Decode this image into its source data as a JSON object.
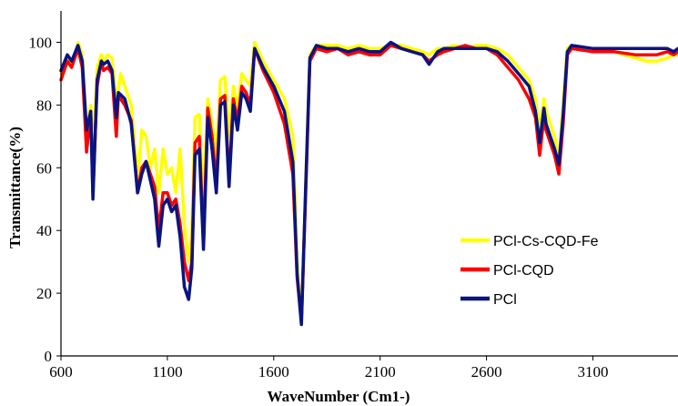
{
  "chart_data": {
    "type": "line",
    "title": "",
    "xlabel": "WaveNumber (Cm1-)",
    "ylabel": "Transmittance(%)",
    "xlim": [
      600,
      3500
    ],
    "ylim": [
      0,
      110
    ],
    "xticks": [
      "600",
      "1100",
      "1600",
      "2100",
      "2600",
      "3100"
    ],
    "yticks": [
      "0",
      "20",
      "40",
      "60",
      "80",
      "100"
    ],
    "grid": false,
    "legend_position": "lower-right",
    "series": [
      {
        "name": "PCl-Cs-CQD-Fe",
        "color": "#FFFF00",
        "points": [
          [
            600,
            90
          ],
          [
            630,
            95
          ],
          [
            650,
            92
          ],
          [
            680,
            100
          ],
          [
            700,
            96
          ],
          [
            720,
            72
          ],
          [
            740,
            80
          ],
          [
            750,
            60
          ],
          [
            770,
            92
          ],
          [
            790,
            96
          ],
          [
            800,
            94
          ],
          [
            820,
            96
          ],
          [
            840,
            95
          ],
          [
            860,
            80
          ],
          [
            880,
            90
          ],
          [
            900,
            86
          ],
          [
            930,
            80
          ],
          [
            960,
            56
          ],
          [
            980,
            72
          ],
          [
            1000,
            70
          ],
          [
            1020,
            60
          ],
          [
            1040,
            66
          ],
          [
            1060,
            52
          ],
          [
            1080,
            66
          ],
          [
            1100,
            58
          ],
          [
            1120,
            60
          ],
          [
            1140,
            52
          ],
          [
            1160,
            66
          ],
          [
            1180,
            42
          ],
          [
            1200,
            30
          ],
          [
            1215,
            40
          ],
          [
            1230,
            76
          ],
          [
            1250,
            77
          ],
          [
            1270,
            48
          ],
          [
            1290,
            82
          ],
          [
            1310,
            74
          ],
          [
            1330,
            64
          ],
          [
            1350,
            88
          ],
          [
            1370,
            89
          ],
          [
            1390,
            70
          ],
          [
            1410,
            86
          ],
          [
            1430,
            79
          ],
          [
            1450,
            90
          ],
          [
            1470,
            88
          ],
          [
            1490,
            86
          ],
          [
            1510,
            100
          ],
          [
            1550,
            94
          ],
          [
            1600,
            88
          ],
          [
            1650,
            82
          ],
          [
            1690,
            70
          ],
          [
            1710,
            30
          ],
          [
            1730,
            10
          ],
          [
            1750,
            55
          ],
          [
            1770,
            96
          ],
          [
            1800,
            99
          ],
          [
            1850,
            99
          ],
          [
            1900,
            99
          ],
          [
            1950,
            98
          ],
          [
            2000,
            99
          ],
          [
            2050,
            98
          ],
          [
            2100,
            98
          ],
          [
            2150,
            99
          ],
          [
            2200,
            99
          ],
          [
            2250,
            98
          ],
          [
            2300,
            97
          ],
          [
            2330,
            96
          ],
          [
            2370,
            98
          ],
          [
            2400,
            98
          ],
          [
            2450,
            99
          ],
          [
            2500,
            98
          ],
          [
            2550,
            99
          ],
          [
            2600,
            99
          ],
          [
            2650,
            98
          ],
          [
            2700,
            96
          ],
          [
            2750,
            92
          ],
          [
            2800,
            88
          ],
          [
            2830,
            82
          ],
          [
            2850,
            72
          ],
          [
            2870,
            82
          ],
          [
            2880,
            78
          ],
          [
            2900,
            74
          ],
          [
            2920,
            70
          ],
          [
            2940,
            62
          ],
          [
            2960,
            80
          ],
          [
            2980,
            98
          ],
          [
            3000,
            99
          ],
          [
            3100,
            98
          ],
          [
            3200,
            97
          ],
          [
            3300,
            95
          ],
          [
            3350,
            94
          ],
          [
            3400,
            94
          ],
          [
            3450,
            95
          ],
          [
            3480,
            96
          ],
          [
            3500,
            96
          ]
        ]
      },
      {
        "name": "PCl-CQD",
        "color": "#FF0000",
        "points": [
          [
            600,
            88
          ],
          [
            630,
            94
          ],
          [
            650,
            92
          ],
          [
            680,
            98
          ],
          [
            700,
            92
          ],
          [
            720,
            65
          ],
          [
            740,
            78
          ],
          [
            750,
            52
          ],
          [
            770,
            86
          ],
          [
            790,
            94
          ],
          [
            800,
            91
          ],
          [
            820,
            92
          ],
          [
            840,
            90
          ],
          [
            860,
            70
          ],
          [
            870,
            83
          ],
          [
            900,
            80
          ],
          [
            930,
            75
          ],
          [
            960,
            52
          ],
          [
            980,
            60
          ],
          [
            1000,
            62
          ],
          [
            1020,
            58
          ],
          [
            1040,
            54
          ],
          [
            1060,
            40
          ],
          [
            1080,
            52
          ],
          [
            1100,
            52
          ],
          [
            1120,
            48
          ],
          [
            1140,
            50
          ],
          [
            1160,
            42
          ],
          [
            1180,
            30
          ],
          [
            1200,
            24
          ],
          [
            1215,
            30
          ],
          [
            1230,
            68
          ],
          [
            1250,
            70
          ],
          [
            1270,
            36
          ],
          [
            1290,
            79
          ],
          [
            1310,
            70
          ],
          [
            1330,
            55
          ],
          [
            1350,
            82
          ],
          [
            1370,
            83
          ],
          [
            1390,
            56
          ],
          [
            1410,
            82
          ],
          [
            1430,
            75
          ],
          [
            1450,
            86
          ],
          [
            1470,
            84
          ],
          [
            1490,
            80
          ],
          [
            1510,
            98
          ],
          [
            1550,
            91
          ],
          [
            1600,
            84
          ],
          [
            1650,
            74
          ],
          [
            1690,
            58
          ],
          [
            1710,
            25
          ],
          [
            1730,
            11
          ],
          [
            1750,
            52
          ],
          [
            1770,
            94
          ],
          [
            1800,
            98
          ],
          [
            1850,
            97
          ],
          [
            1900,
            98
          ],
          [
            1950,
            96
          ],
          [
            2000,
            97
          ],
          [
            2050,
            96
          ],
          [
            2100,
            96
          ],
          [
            2150,
            99
          ],
          [
            2200,
            98
          ],
          [
            2250,
            97
          ],
          [
            2300,
            96
          ],
          [
            2330,
            94
          ],
          [
            2370,
            96
          ],
          [
            2400,
            97
          ],
          [
            2450,
            98
          ],
          [
            2500,
            99
          ],
          [
            2550,
            98
          ],
          [
            2600,
            98
          ],
          [
            2650,
            96
          ],
          [
            2700,
            92
          ],
          [
            2750,
            88
          ],
          [
            2800,
            82
          ],
          [
            2830,
            76
          ],
          [
            2850,
            64
          ],
          [
            2870,
            76
          ],
          [
            2880,
            72
          ],
          [
            2900,
            68
          ],
          [
            2920,
            64
          ],
          [
            2940,
            58
          ],
          [
            2960,
            74
          ],
          [
            2980,
            96
          ],
          [
            3000,
            98
          ],
          [
            3100,
            97
          ],
          [
            3200,
            97
          ],
          [
            3300,
            96
          ],
          [
            3350,
            96
          ],
          [
            3400,
            96
          ],
          [
            3450,
            97
          ],
          [
            3480,
            96
          ],
          [
            3500,
            97
          ]
        ]
      },
      {
        "name": "PCl",
        "color": "#0A1480",
        "points": [
          [
            600,
            91
          ],
          [
            630,
            96
          ],
          [
            650,
            94
          ],
          [
            680,
            99
          ],
          [
            700,
            94
          ],
          [
            720,
            72
          ],
          [
            740,
            78
          ],
          [
            750,
            50
          ],
          [
            770,
            88
          ],
          [
            790,
            94
          ],
          [
            800,
            93
          ],
          [
            820,
            94
          ],
          [
            840,
            91
          ],
          [
            860,
            76
          ],
          [
            870,
            84
          ],
          [
            900,
            82
          ],
          [
            930,
            74
          ],
          [
            960,
            52
          ],
          [
            980,
            58
          ],
          [
            1000,
            62
          ],
          [
            1020,
            56
          ],
          [
            1040,
            50
          ],
          [
            1060,
            35
          ],
          [
            1080,
            48
          ],
          [
            1100,
            50
          ],
          [
            1120,
            46
          ],
          [
            1140,
            48
          ],
          [
            1160,
            38
          ],
          [
            1180,
            22
          ],
          [
            1200,
            18
          ],
          [
            1215,
            28
          ],
          [
            1230,
            64
          ],
          [
            1250,
            66
          ],
          [
            1270,
            34
          ],
          [
            1290,
            76
          ],
          [
            1310,
            66
          ],
          [
            1330,
            52
          ],
          [
            1350,
            80
          ],
          [
            1370,
            81
          ],
          [
            1390,
            54
          ],
          [
            1410,
            80
          ],
          [
            1430,
            72
          ],
          [
            1450,
            84
          ],
          [
            1470,
            82
          ],
          [
            1490,
            78
          ],
          [
            1510,
            98
          ],
          [
            1550,
            92
          ],
          [
            1600,
            86
          ],
          [
            1650,
            78
          ],
          [
            1690,
            62
          ],
          [
            1710,
            26
          ],
          [
            1730,
            10
          ],
          [
            1750,
            54
          ],
          [
            1770,
            95
          ],
          [
            1800,
            99
          ],
          [
            1850,
            98
          ],
          [
            1900,
            98
          ],
          [
            1950,
            97
          ],
          [
            2000,
            98
          ],
          [
            2050,
            97
          ],
          [
            2100,
            97
          ],
          [
            2150,
            100
          ],
          [
            2200,
            98
          ],
          [
            2250,
            97
          ],
          [
            2300,
            96
          ],
          [
            2330,
            93
          ],
          [
            2370,
            97
          ],
          [
            2400,
            98
          ],
          [
            2450,
            98
          ],
          [
            2500,
            98
          ],
          [
            2550,
            98
          ],
          [
            2600,
            98
          ],
          [
            2650,
            97
          ],
          [
            2700,
            94
          ],
          [
            2750,
            90
          ],
          [
            2800,
            86
          ],
          [
            2830,
            78
          ],
          [
            2850,
            68
          ],
          [
            2870,
            79
          ],
          [
            2880,
            74
          ],
          [
            2900,
            70
          ],
          [
            2920,
            66
          ],
          [
            2940,
            61
          ],
          [
            2960,
            77
          ],
          [
            2980,
            97
          ],
          [
            3000,
            99
          ],
          [
            3100,
            98
          ],
          [
            3200,
            98
          ],
          [
            3300,
            98
          ],
          [
            3350,
            98
          ],
          [
            3400,
            98
          ],
          [
            3450,
            98
          ],
          [
            3480,
            97
          ],
          [
            3500,
            98
          ]
        ]
      }
    ]
  }
}
